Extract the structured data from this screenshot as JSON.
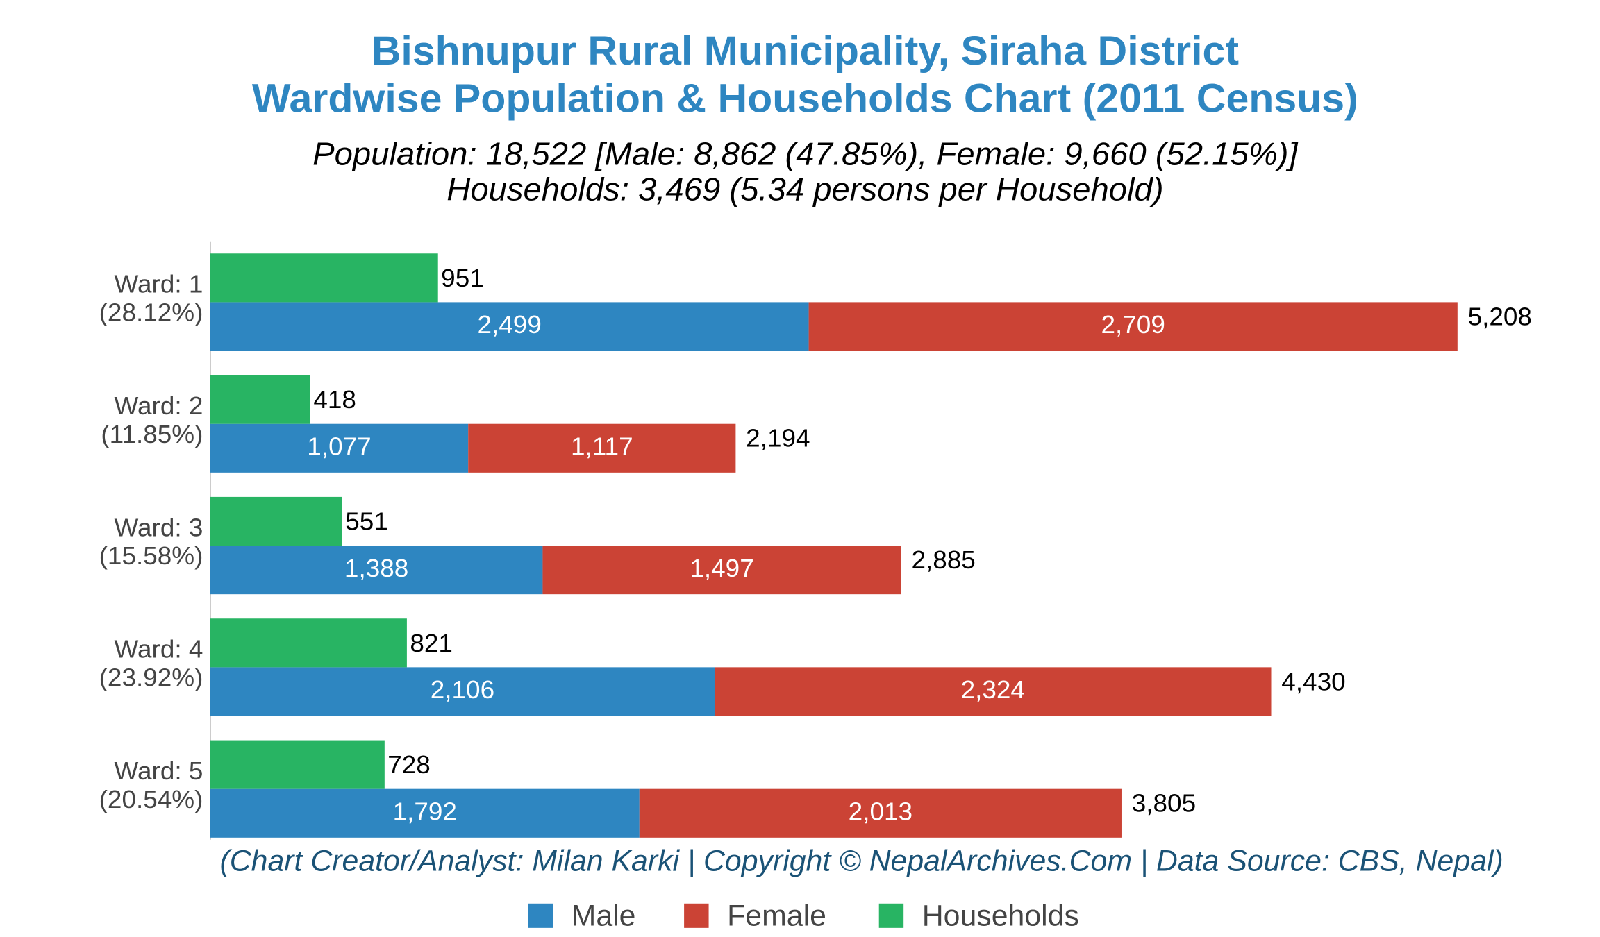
{
  "chart_data": {
    "type": "bar",
    "orientation": "horizontal",
    "title": [
      "Bishnupur Rural Municipality, Siraha District",
      "Wardwise Population & Households Chart (2011 Census)"
    ],
    "subtitle": [
      "Population: 18,522 [Male: 8,862 (47.85%), Female: 9,660 (52.15%)]",
      "Households: 3,469 (5.34 persons per Household)"
    ],
    "footer": "(Chart Creator/Analyst: Milan Karki | Copyright © NepalArchives.Com | Data Source: CBS, Nepal)",
    "categories": [
      "Ward: 1",
      "Ward: 2",
      "Ward: 3",
      "Ward: 4",
      "Ward: 5"
    ],
    "category_share_labels": [
      "(28.12%)",
      "(11.85%)",
      "(15.58%)",
      "(23.92%)",
      "(20.54%)"
    ],
    "series": [
      {
        "name": "Male",
        "color": "#2e86c1",
        "stack": "population",
        "values": [
          2499,
          1077,
          1388,
          2106,
          1792
        ],
        "value_labels": [
          "2,499",
          "1,077",
          "1,388",
          "2,106",
          "1,792"
        ]
      },
      {
        "name": "Female",
        "color": "#cb4335",
        "stack": "population",
        "values": [
          2709,
          1117,
          1497,
          2324,
          2013
        ],
        "value_labels": [
          "2,709",
          "1,117",
          "1,497",
          "2,324",
          "2,013"
        ]
      },
      {
        "name": "Households",
        "color": "#28b463",
        "stack": "households",
        "values": [
          951,
          418,
          551,
          821,
          728
        ],
        "value_labels": [
          "951",
          "418",
          "551",
          "821",
          "728"
        ]
      }
    ],
    "totals": [
      5208,
      2194,
      2885,
      4430,
      3805
    ],
    "total_labels": [
      "5,208",
      "2,194",
      "2,885",
      "4,430",
      "3,805"
    ],
    "xlim": [
      0,
      5700
    ],
    "legend": "bottom"
  }
}
